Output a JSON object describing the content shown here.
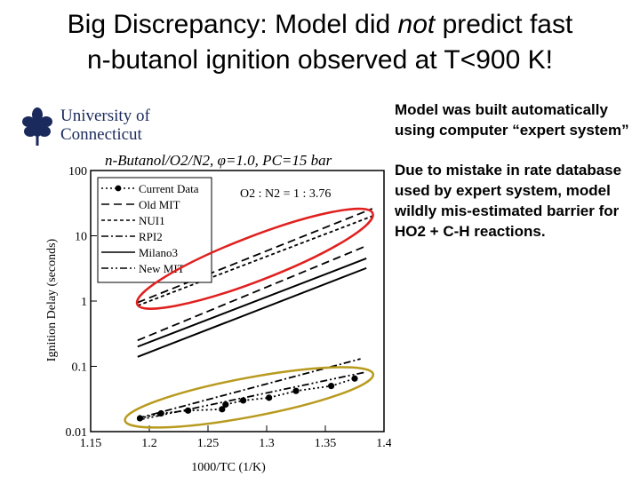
{
  "title": {
    "line1_before": "Big Discrepancy: Model did ",
    "line1_em": "not",
    "line1_after": " predict fast",
    "line2": "n-butanol ignition observed at T<900 K!"
  },
  "logo": {
    "line1": "University of",
    "line2": "Connecticut",
    "color": "#1b2a5c"
  },
  "notes": [
    "Model was built automatically using computer “expert system”",
    "Due to mistake in rate database used by expert system, model wildly mis-estimated barrier for HO2 + C-H reactions."
  ],
  "chart_data": {
    "type": "line",
    "title": "n-Butanol/O2/N2, φ=1.0, PC=15 bar",
    "annotation": "O2 : N2 = 1 : 3.76",
    "xlabel": "1000/TC (1/K)",
    "ylabel": "Ignition Delay (seconds)",
    "xlim": [
      1.15,
      1.4
    ],
    "ylim": [
      0.01,
      100
    ],
    "yscale": "log",
    "xticks": [
      "1.15",
      "1.2",
      "1.25",
      "1.3",
      "1.35",
      "1.4"
    ],
    "yticks": [
      "0.01",
      "0.1",
      "1",
      "10",
      "100"
    ],
    "legend_position": "top-left",
    "series": [
      {
        "name": "Current Data",
        "style": "markers-dotted",
        "x": [
          1.192,
          1.21,
          1.233,
          1.262,
          1.265,
          1.28,
          1.302,
          1.325,
          1.355,
          1.375
        ],
        "y": [
          0.016,
          0.019,
          0.021,
          0.022,
          0.026,
          0.03,
          0.033,
          0.042,
          0.05,
          0.065
        ]
      },
      {
        "name": "Old MIT",
        "style": "dashed",
        "x": [
          1.19,
          1.39
        ],
        "y": [
          0.95,
          26
        ]
      },
      {
        "name": "NUI1",
        "style": "dense-dashed",
        "x": [
          1.19,
          1.39
        ],
        "y": [
          0.85,
          20
        ]
      },
      {
        "name": "RPI2",
        "style": "dash-dot",
        "x": [
          1.19,
          1.38
        ],
        "y": [
          0.016,
          0.13
        ]
      },
      {
        "name": "Milano3",
        "style": "solid",
        "x": [
          1.19,
          1.385
        ],
        "y": [
          0.2,
          4.5
        ]
      },
      {
        "name": "New MIT",
        "style": "dash-dot-dot",
        "x": [
          1.19,
          1.385
        ],
        "y": [
          0.015,
          0.082
        ]
      },
      {
        "name": "",
        "style": "solid",
        "x": [
          1.19,
          1.385
        ],
        "y": [
          0.14,
          3.2
        ]
      },
      {
        "name": "",
        "style": "dashed",
        "x": [
          1.19,
          1.385
        ],
        "y": [
          0.25,
          7.0
        ]
      }
    ],
    "highlight_colors": {
      "model": "#e0201e",
      "data": "#b89a1e"
    }
  }
}
